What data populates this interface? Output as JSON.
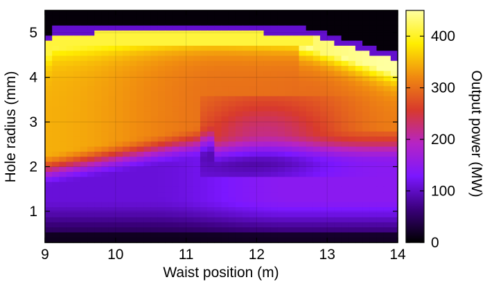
{
  "chart_data": {
    "type": "heatmap",
    "xlabel": "Waist position (m)",
    "ylabel": "Hole radius (mm)",
    "colorbar_label": "Output power (MW)",
    "xlim": [
      9,
      14
    ],
    "ylim": [
      0.3,
      5.5
    ],
    "x_ticks": [
      9,
      10,
      11,
      12,
      13,
      14
    ],
    "y_ticks": [
      1,
      2,
      3,
      4,
      5
    ],
    "colorbar_range": [
      0,
      450
    ],
    "colorbar_ticks": [
      0,
      100,
      200,
      300,
      400
    ],
    "colormap": [
      "#000000",
      "#3a007a",
      "#7b17ff",
      "#b624c4",
      "#d83a2c",
      "#f08a10",
      "#ffee00",
      "#ffffa0"
    ],
    "grid": true,
    "grid_nx": 50,
    "grid_ny": 46,
    "description_regions": {
      "bottom_dark_band_mm": [
        0.3,
        0.8
      ],
      "violet_band_mm": [
        0.8,
        2.0
      ],
      "orange_red_band_mm": [
        2.2,
        4.8
      ],
      "top_yellow_ridge_mm": [
        4.6,
        4.9
      ],
      "black_above_mm": [
        5.0,
        5.5
      ]
    }
  }
}
